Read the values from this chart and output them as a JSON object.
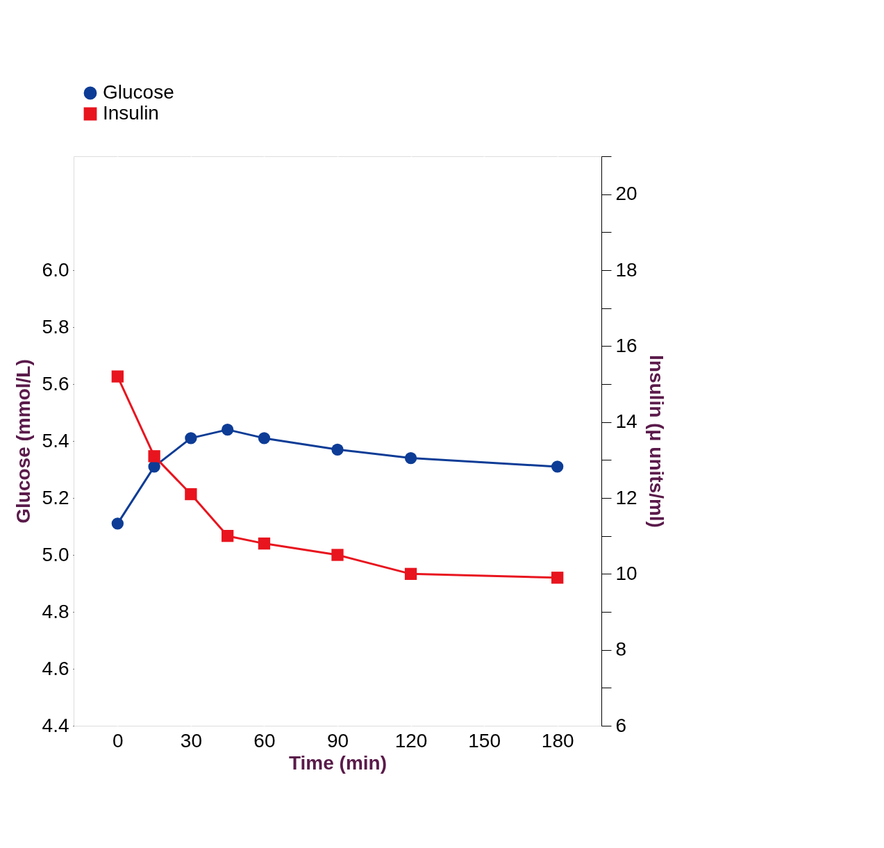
{
  "chart_data": {
    "type": "line",
    "xlabel": "Time (min)",
    "ylabel": "Glucose (mmol/L)",
    "y2label": "Insulin (μ units/ml)",
    "x": [
      0,
      15,
      30,
      45,
      60,
      90,
      120,
      180
    ],
    "series": [
      {
        "name": "Glucose",
        "color": "#0d3c96",
        "marker": "circle",
        "values": [
          5.11,
          5.31,
          5.41,
          5.44,
          5.41,
          5.37,
          5.34,
          5.31
        ]
      },
      {
        "name": "Insulin",
        "color": "#e8141e",
        "marker": "square",
        "axis": "y2",
        "values": [
          15.2,
          13.1,
          12.1,
          11.0,
          10.8,
          10.5,
          10.0,
          9.9
        ]
      }
    ],
    "xlim": [
      -18,
      198
    ],
    "xticks": [
      0,
      30,
      60,
      90,
      120,
      150,
      180
    ],
    "ylim": [
      4.4,
      6.4
    ],
    "yticks": [
      4.4,
      4.6,
      4.8,
      {
        "value": 5,
        "label": "5.0"
      },
      5.2,
      5.4,
      5.6,
      5.8,
      {
        "value": 6,
        "label": "6.0"
      }
    ],
    "y2lim": [
      6,
      21
    ],
    "y2ticks": [
      6,
      {
        "value": 7,
        "label": null
      },
      8,
      {
        "value": 9,
        "label": null
      },
      10,
      {
        "value": 11,
        "label": null
      },
      12,
      {
        "value": 13,
        "label": null
      },
      14,
      {
        "value": 15,
        "label": null
      },
      16,
      {
        "value": 17,
        "label": null
      },
      18,
      {
        "value": 19,
        "label": null
      },
      20,
      {
        "value": 21,
        "label": null
      }
    ],
    "grid": "x",
    "legend": "top left",
    "line_style": "solid"
  }
}
